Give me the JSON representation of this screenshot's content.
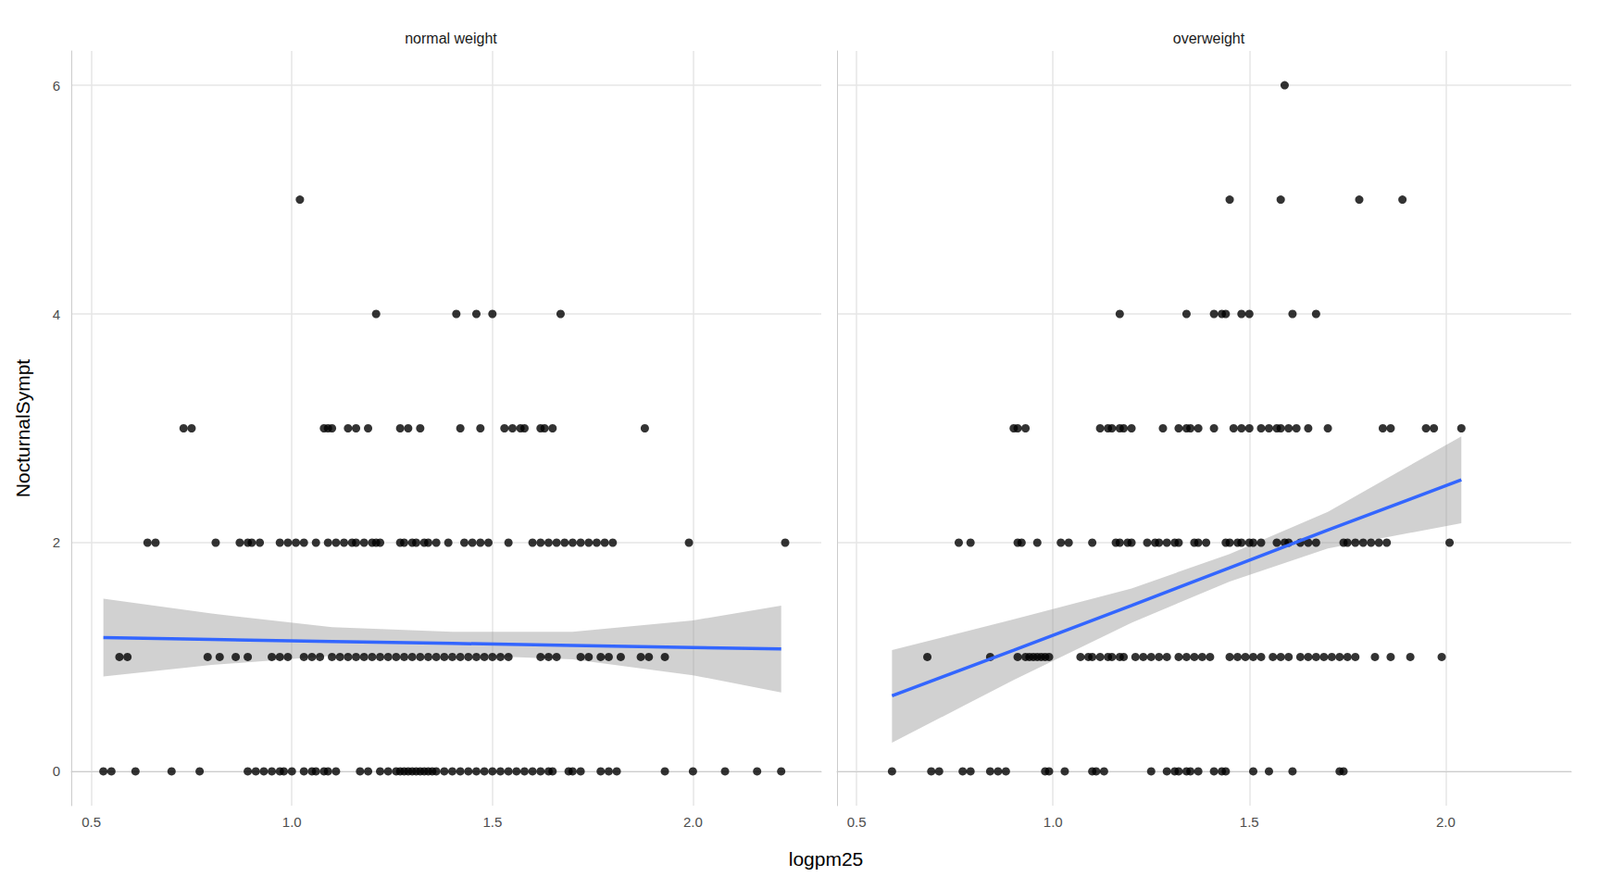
{
  "chart_data": {
    "type": "scatter",
    "x_label": "logpm25",
    "y_label": "NocturnalSympt",
    "xlim": [
      0.45,
      2.32
    ],
    "ylim": [
      -0.3,
      6.3
    ],
    "xticks": [
      0.5,
      {
        "value": 1,
        "label": "1.0"
      },
      1.5,
      {
        "value": 2,
        "label": "2.0"
      }
    ],
    "yticks": [
      0,
      2,
      4,
      6
    ],
    "grid": true,
    "marker": "circle",
    "panels": [
      {
        "title": "normal weight",
        "color": "#000000",
        "x": [
          1.02,
          1.21,
          1.41,
          1.46,
          1.5,
          1.67,
          0.73,
          0.75,
          1.08,
          1.09,
          1.1,
          1.14,
          1.16,
          1.19,
          1.27,
          1.29,
          1.32,
          1.42,
          1.47,
          1.53,
          1.55,
          1.57,
          1.58,
          1.62,
          1.63,
          1.65,
          1.88,
          0.64,
          0.66,
          0.81,
          0.87,
          0.89,
          0.9,
          0.92,
          0.97,
          0.99,
          1.01,
          1.03,
          1.06,
          1.09,
          1.11,
          1.13,
          1.15,
          1.16,
          1.18,
          1.2,
          1.21,
          1.22,
          1.27,
          1.28,
          1.3,
          1.31,
          1.33,
          1.34,
          1.36,
          1.39,
          1.43,
          1.45,
          1.47,
          1.49,
          1.54,
          1.6,
          1.62,
          1.64,
          1.66,
          1.68,
          1.7,
          1.72,
          1.74,
          1.76,
          1.78,
          1.8,
          1.99,
          2.23,
          0.57,
          0.59,
          0.79,
          0.82,
          0.86,
          0.89,
          0.95,
          0.97,
          0.99,
          1.03,
          1.05,
          1.07,
          1.1,
          1.12,
          1.14,
          1.16,
          1.18,
          1.2,
          1.22,
          1.24,
          1.26,
          1.28,
          1.3,
          1.32,
          1.34,
          1.36,
          1.38,
          1.4,
          1.42,
          1.44,
          1.46,
          1.48,
          1.5,
          1.52,
          1.54,
          1.62,
          1.64,
          1.66,
          1.72,
          1.74,
          1.77,
          1.79,
          1.82,
          1.87,
          1.89,
          1.93,
          0.53,
          0.55,
          0.61,
          0.7,
          0.77,
          0.89,
          0.91,
          0.93,
          0.95,
          0.97,
          0.98,
          1.0,
          1.03,
          1.05,
          1.06,
          1.08,
          1.09,
          1.11,
          1.17,
          1.19,
          1.22,
          1.24,
          1.26,
          1.27,
          1.28,
          1.29,
          1.3,
          1.31,
          1.32,
          1.33,
          1.34,
          1.35,
          1.36,
          1.38,
          1.4,
          1.42,
          1.44,
          1.46,
          1.48,
          1.5,
          1.52,
          1.54,
          1.56,
          1.58,
          1.6,
          1.62,
          1.64,
          1.65,
          1.69,
          1.7,
          1.72,
          1.77,
          1.79,
          1.81,
          1.93,
          2.0,
          2.08,
          2.16,
          2.22
        ],
        "values": [
          5,
          4,
          4,
          4,
          4,
          4,
          3,
          3,
          3,
          3,
          3,
          3,
          3,
          3,
          3,
          3,
          3,
          3,
          3,
          3,
          3,
          3,
          3,
          3,
          3,
          3,
          3,
          2,
          2,
          2,
          2,
          2,
          2,
          2,
          2,
          2,
          2,
          2,
          2,
          2,
          2,
          2,
          2,
          2,
          2,
          2,
          2,
          2,
          2,
          2,
          2,
          2,
          2,
          2,
          2,
          2,
          2,
          2,
          2,
          2,
          2,
          2,
          2,
          2,
          2,
          2,
          2,
          2,
          2,
          2,
          2,
          2,
          2,
          2,
          1,
          1,
          1,
          1,
          1,
          1,
          1,
          1,
          1,
          1,
          1,
          1,
          1,
          1,
          1,
          1,
          1,
          1,
          1,
          1,
          1,
          1,
          1,
          1,
          1,
          1,
          1,
          1,
          1,
          1,
          1,
          1,
          1,
          1,
          1,
          1,
          1,
          1,
          1,
          1,
          1,
          1,
          1,
          1,
          1,
          1,
          0,
          0,
          0,
          0,
          0,
          0,
          0,
          0,
          0,
          0,
          0,
          0,
          0,
          0,
          0,
          0,
          0,
          0,
          0,
          0,
          0,
          0,
          0,
          0,
          0,
          0,
          0,
          0,
          0,
          0,
          0,
          0,
          0,
          0,
          0,
          0,
          0,
          0,
          0,
          0,
          0,
          0,
          0,
          0,
          0,
          0,
          0,
          0,
          0,
          0,
          0,
          0,
          0,
          0,
          0,
          0,
          0,
          0,
          0
        ],
        "fit": {
          "color": "#3366ff",
          "band_color": "#999999",
          "x": [
            0.53,
            0.8,
            1.1,
            1.4,
            1.7,
            2.0,
            2.22
          ],
          "values": [
            1.17,
            1.154,
            1.136,
            1.119,
            1.101,
            1.083,
            1.07
          ],
          "lower": [
            0.83,
            0.93,
            1.01,
            1.02,
            0.98,
            0.84,
            0.69
          ],
          "upper": [
            1.51,
            1.38,
            1.26,
            1.22,
            1.22,
            1.32,
            1.45
          ]
        }
      },
      {
        "title": "overweight",
        "color": "#000000",
        "x": [
          1.59,
          1.45,
          1.58,
          1.78,
          1.89,
          1.17,
          1.34,
          1.41,
          1.43,
          1.44,
          1.48,
          1.5,
          1.61,
          1.67,
          0.9,
          0.91,
          0.93,
          1.12,
          1.14,
          1.15,
          1.17,
          1.18,
          1.2,
          1.28,
          1.32,
          1.34,
          1.35,
          1.37,
          1.41,
          1.46,
          1.48,
          1.5,
          1.53,
          1.55,
          1.57,
          1.58,
          1.6,
          1.62,
          1.65,
          1.7,
          1.84,
          1.86,
          1.95,
          1.97,
          2.04,
          0.76,
          0.79,
          0.91,
          0.92,
          0.96,
          1.02,
          1.04,
          1.1,
          1.16,
          1.17,
          1.19,
          1.2,
          1.24,
          1.26,
          1.27,
          1.29,
          1.31,
          1.32,
          1.36,
          1.37,
          1.39,
          1.44,
          1.45,
          1.47,
          1.48,
          1.5,
          1.51,
          1.53,
          1.57,
          1.59,
          1.6,
          1.63,
          1.65,
          1.67,
          1.74,
          1.75,
          1.77,
          1.79,
          1.81,
          1.83,
          1.85,
          2.01,
          0.68,
          0.84,
          0.91,
          0.93,
          0.94,
          0.95,
          0.96,
          0.97,
          0.98,
          0.99,
          1.07,
          1.09,
          1.1,
          1.12,
          1.14,
          1.15,
          1.17,
          1.18,
          1.21,
          1.23,
          1.25,
          1.27,
          1.29,
          1.32,
          1.34,
          1.36,
          1.38,
          1.4,
          1.45,
          1.47,
          1.49,
          1.51,
          1.53,
          1.56,
          1.58,
          1.6,
          1.63,
          1.65,
          1.67,
          1.69,
          1.71,
          1.73,
          1.75,
          1.77,
          1.82,
          1.86,
          1.91,
          1.99,
          0.59,
          0.69,
          0.71,
          0.77,
          0.79,
          0.84,
          0.86,
          0.88,
          0.98,
          0.99,
          1.03,
          1.1,
          1.11,
          1.13,
          1.25,
          1.29,
          1.31,
          1.32,
          1.34,
          1.35,
          1.37,
          1.41,
          1.43,
          1.44,
          1.51,
          1.55,
          1.61,
          1.73,
          1.74
        ],
        "values": [
          6,
          5,
          5,
          5,
          5,
          4,
          4,
          4,
          4,
          4,
          4,
          4,
          4,
          4,
          3,
          3,
          3,
          3,
          3,
          3,
          3,
          3,
          3,
          3,
          3,
          3,
          3,
          3,
          3,
          3,
          3,
          3,
          3,
          3,
          3,
          3,
          3,
          3,
          3,
          3,
          3,
          3,
          3,
          3,
          3,
          2,
          2,
          2,
          2,
          2,
          2,
          2,
          2,
          2,
          2,
          2,
          2,
          2,
          2,
          2,
          2,
          2,
          2,
          2,
          2,
          2,
          2,
          2,
          2,
          2,
          2,
          2,
          2,
          2,
          2,
          2,
          2,
          2,
          2,
          2,
          2,
          2,
          2,
          2,
          2,
          2,
          2,
          1,
          1,
          1,
          1,
          1,
          1,
          1,
          1,
          1,
          1,
          1,
          1,
          1,
          1,
          1,
          1,
          1,
          1,
          1,
          1,
          1,
          1,
          1,
          1,
          1,
          1,
          1,
          1,
          1,
          1,
          1,
          1,
          1,
          1,
          1,
          1,
          1,
          1,
          1,
          1,
          1,
          1,
          1,
          1,
          1,
          1,
          1,
          1,
          0,
          0,
          0,
          0,
          0,
          0,
          0,
          0,
          0,
          0,
          0,
          0,
          0,
          0,
          0,
          0,
          0,
          0,
          0,
          0,
          0,
          0,
          0,
          0,
          0,
          0,
          0,
          0,
          0
        ],
        "fit": {
          "color": "#3366ff",
          "band_color": "#999999",
          "x": [
            0.59,
            0.9,
            1.2,
            1.45,
            1.7,
            2.04
          ],
          "values": [
            0.66,
            1.06,
            1.45,
            1.78,
            2.11,
            2.55
          ],
          "lower": [
            0.25,
            0.8,
            1.3,
            1.66,
            1.95,
            2.17
          ],
          "upper": [
            1.06,
            1.33,
            1.6,
            1.9,
            2.27,
            2.93
          ]
        }
      }
    ]
  }
}
